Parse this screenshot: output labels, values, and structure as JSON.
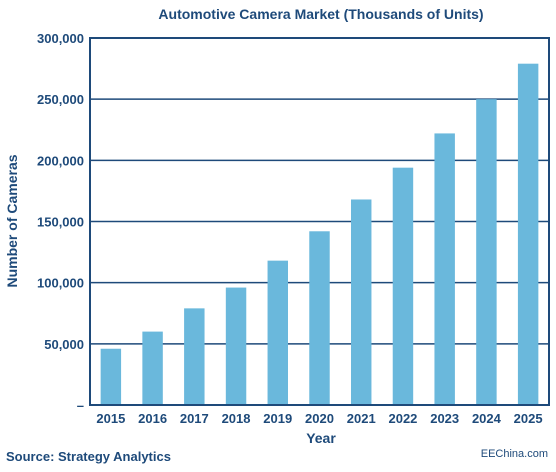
{
  "colors": {
    "text": "#1e4a7a",
    "bar": "#6ab8dc",
    "grid": "#1e4a7a",
    "frame": "#1e4a7a",
    "background": "#ffffff"
  },
  "source": "Source: Strategy Analytics",
  "watermark": "EEChina.com",
  "chart_data": {
    "type": "bar",
    "title": "Automotive Camera Market (Thousands of Units)",
    "xlabel": "Year",
    "ylabel": "Number of Cameras",
    "categories": [
      "2015",
      "2016",
      "2017",
      "2018",
      "2019",
      "2020",
      "2021",
      "2022",
      "2023",
      "2024",
      "2025"
    ],
    "values": [
      46000,
      60000,
      79000,
      96000,
      118000,
      142000,
      168000,
      194000,
      222000,
      250000,
      279000
    ],
    "ylim": [
      0,
      300000
    ],
    "yticks": [
      0,
      50000,
      100000,
      150000,
      200000,
      250000,
      300000
    ],
    "ytick_labels": [
      "–",
      "50,000",
      "100,000",
      "150,000",
      "200,000",
      "250,000",
      "300,000"
    ],
    "grid": true,
    "legend": "none"
  }
}
